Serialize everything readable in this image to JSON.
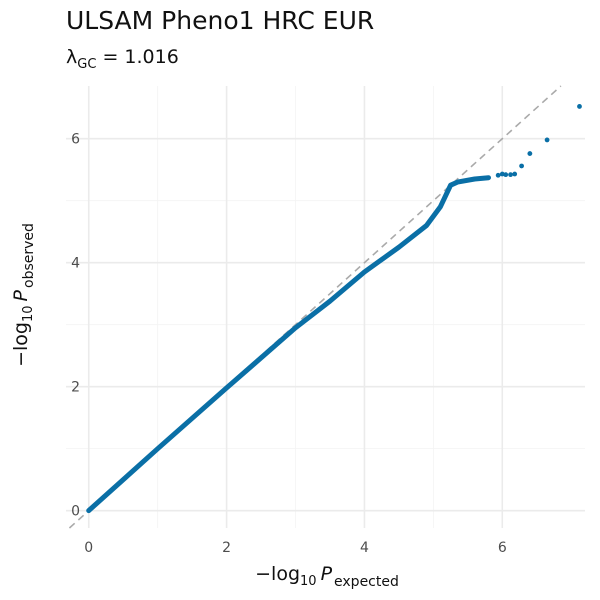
{
  "chart_data": {
    "type": "scatter",
    "title": "ULSAM Pheno1 HRC EUR",
    "subtitle": {
      "lambda_symbol": "λ",
      "lambda_subscript": "GC",
      "lambda_text": " = 1.016"
    },
    "xlabel": {
      "prefix": "−log",
      "base": "10",
      "var": "P",
      "subscript": "expected"
    },
    "ylabel": {
      "prefix": "−log",
      "base": "10",
      "var": "P",
      "subscript": "observed"
    },
    "xlim": [
      -0.33,
      7.2
    ],
    "ylim": [
      -0.28,
      6.85
    ],
    "x_ticks": [
      0,
      2,
      4,
      6
    ],
    "y_ticks": [
      0,
      2,
      4,
      6
    ],
    "grid": true,
    "reference_line": {
      "slope": 1,
      "intercept": 0,
      "style": "dashed",
      "color": "#aaaaaa"
    },
    "point_color": "#0a6fa6",
    "background": "#ffffff",
    "gridline_color": "#ebebeb",
    "bulk_trend": [
      [
        0,
        0
      ],
      [
        1,
        1
      ],
      [
        2,
        1.98
      ],
      [
        3,
        2.95
      ],
      [
        3.5,
        3.38
      ],
      [
        4,
        3.85
      ],
      [
        4.5,
        4.25
      ],
      [
        4.9,
        4.6
      ],
      [
        5.1,
        4.9
      ],
      [
        5.25,
        5.25
      ],
      [
        5.35,
        5.3
      ],
      [
        5.6,
        5.35
      ],
      [
        5.8,
        5.37
      ]
    ],
    "values": [
      [
        5.94,
        5.41
      ],
      [
        6.0,
        5.43
      ],
      [
        6.05,
        5.42
      ],
      [
        6.12,
        5.42
      ],
      [
        6.18,
        5.43
      ],
      [
        6.28,
        5.56
      ],
      [
        6.4,
        5.76
      ],
      [
        6.65,
        5.98
      ],
      [
        7.12,
        6.52
      ]
    ]
  }
}
